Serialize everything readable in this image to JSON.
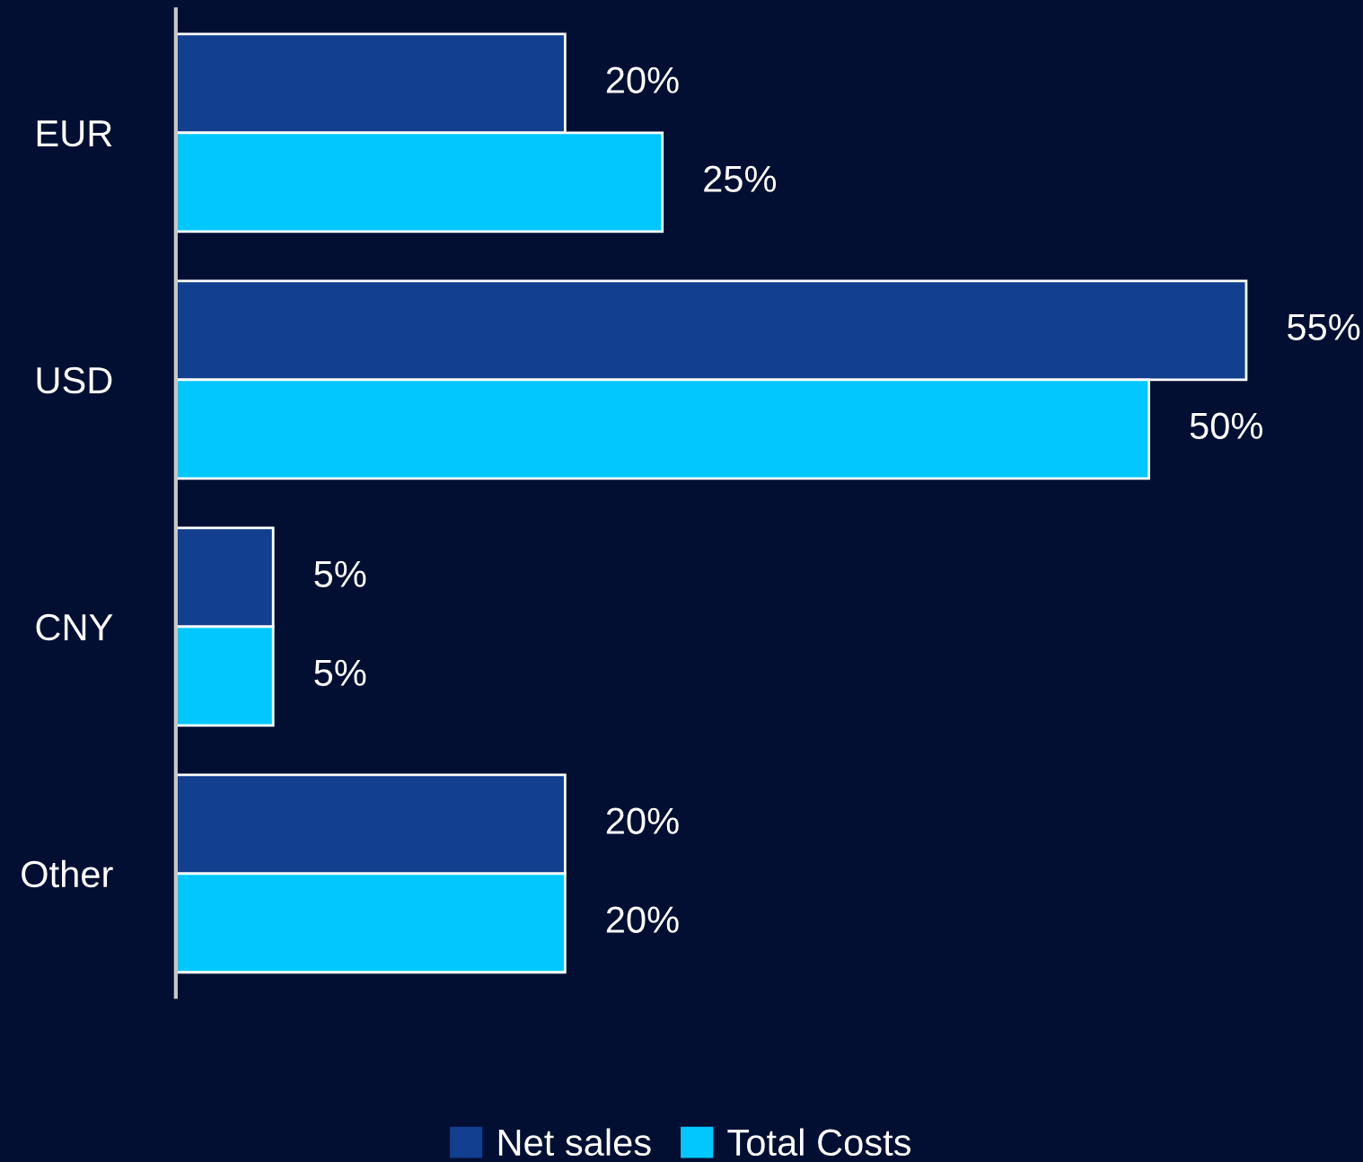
{
  "chart_data": {
    "type": "bar",
    "orientation": "horizontal",
    "categories": [
      "EUR",
      "USD",
      "CNY",
      "Other"
    ],
    "series": [
      {
        "name": "Net sales",
        "color": "#123f8f",
        "values": [
          20,
          55,
          5,
          20
        ],
        "value_labels": [
          "20%",
          "55%",
          "5%",
          "20%"
        ]
      },
      {
        "name": "Total Costs",
        "color": "#00c8ff",
        "values": [
          25,
          50,
          5,
          20
        ],
        "value_labels": [
          "25%",
          "50%",
          "5%",
          "20%"
        ]
      }
    ],
    "xlim": [
      0,
      61
    ],
    "tick_labels": "y",
    "legend": "bottom",
    "grid": false
  }
}
